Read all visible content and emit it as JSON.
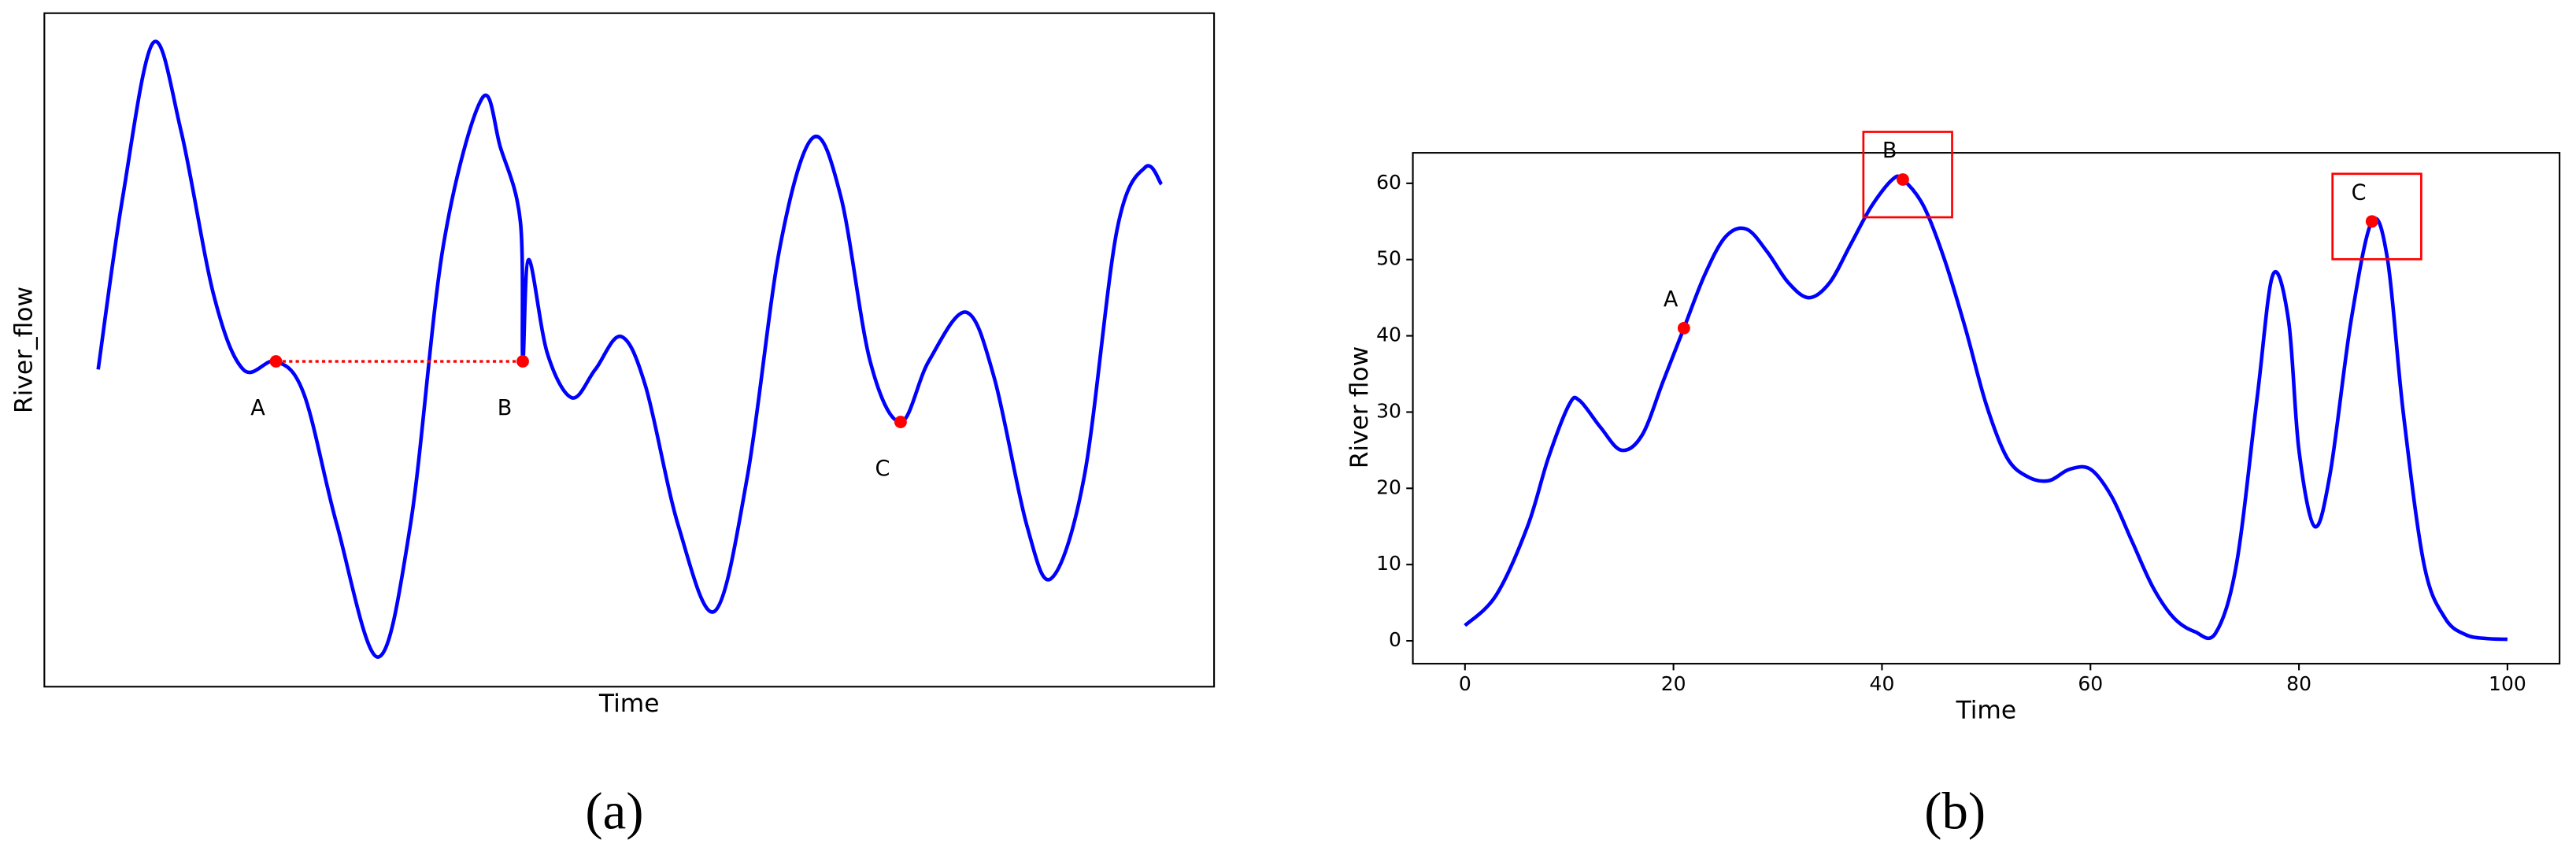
{
  "chart_data": [
    {
      "type": "line",
      "x_label": "Time",
      "y_label": "River_flow",
      "caption": "(a)",
      "x": [
        4.6,
        6.7,
        9.3,
        11.7,
        14.5,
        17.0,
        19.8,
        22.2,
        25.0,
        28.5,
        31.3,
        34.1,
        37.4,
        39.0,
        40.7,
        40.9,
        41.4,
        43.0,
        45.1,
        47.1,
        49.3,
        51.4,
        54.2,
        57.3,
        60.1,
        62.9,
        65.7,
        68.1,
        70.6,
        73.2,
        75.6,
        78.8,
        81.2,
        84.0,
        86.1,
        88.9,
        91.7,
        94.1,
        95.5
      ],
      "values": [
        47.1,
        72.7,
        95.6,
        82.4,
        58.0,
        47.1,
        48.3,
        43.4,
        24.1,
        4.4,
        24.1,
        65.4,
        87.3,
        80.0,
        69.0,
        48.3,
        63.4,
        49.5,
        42.9,
        47.1,
        52.0,
        44.6,
        23.9,
        11.2,
        31.2,
        65.4,
        81.5,
        72.7,
        48.3,
        39.3,
        48.3,
        55.6,
        45.9,
        23.9,
        16.1,
        31.2,
        67.8,
        77.1,
        74.6
      ],
      "color": "#0000ff",
      "xlim": [
        0,
        100
      ],
      "ylim": [
        0,
        100
      ],
      "points": [
        {
          "label": "A",
          "x": 19.8,
          "y": 48.3,
          "boxed": false
        },
        {
          "label": "B",
          "x": 40.9,
          "y": 48.3,
          "boxed": false
        },
        {
          "label": "C",
          "x": 73.2,
          "y": 39.3,
          "boxed": false
        }
      ],
      "point_color": "#ff0000",
      "connect_first_two": true,
      "label_position": "below"
    },
    {
      "type": "line",
      "x_label": "Time",
      "y_label": "River flow",
      "caption": "(b)",
      "x": [
        0,
        3,
        6,
        8,
        10,
        11,
        13,
        15,
        17,
        19,
        21,
        23,
        25,
        27,
        29,
        31,
        33,
        35,
        37,
        39,
        41,
        42,
        44,
        46,
        48,
        50,
        52,
        54,
        56,
        58,
        60,
        62,
        64,
        66,
        68,
        70,
        72,
        74,
        76,
        77.5,
        79,
        80,
        81.5,
        83,
        85,
        87,
        88.5,
        90,
        92,
        94,
        96,
        98,
        100
      ],
      "values": [
        2,
        6,
        15,
        24,
        31,
        31.5,
        28,
        25,
        27,
        34,
        41,
        48,
        53,
        54,
        51,
        47,
        45,
        47,
        52,
        57,
        60.5,
        60.5,
        57,
        50,
        41,
        31,
        24,
        21.5,
        21,
        22.5,
        22.5,
        19,
        13,
        7,
        3,
        1.2,
        1,
        10,
        32,
        48,
        42,
        25,
        15,
        22,
        42,
        55,
        50,
        30,
        10,
        3,
        0.8,
        0.3,
        0.2
      ],
      "color": "#0000ff",
      "xlim": [
        -5,
        105
      ],
      "ylim": [
        -3,
        64
      ],
      "xticks": [
        0,
        20,
        40,
        60,
        80,
        100
      ],
      "yticks": [
        0,
        10,
        20,
        30,
        40,
        50,
        60
      ],
      "points": [
        {
          "label": "A",
          "x": 21,
          "y": 41,
          "boxed": false
        },
        {
          "label": "B",
          "x": 42,
          "y": 60.5,
          "boxed": true
        },
        {
          "label": "C",
          "x": 87,
          "y": 55,
          "boxed": true
        }
      ],
      "point_color": "#ff0000",
      "connect_first_two": false,
      "label_position": "above"
    }
  ]
}
